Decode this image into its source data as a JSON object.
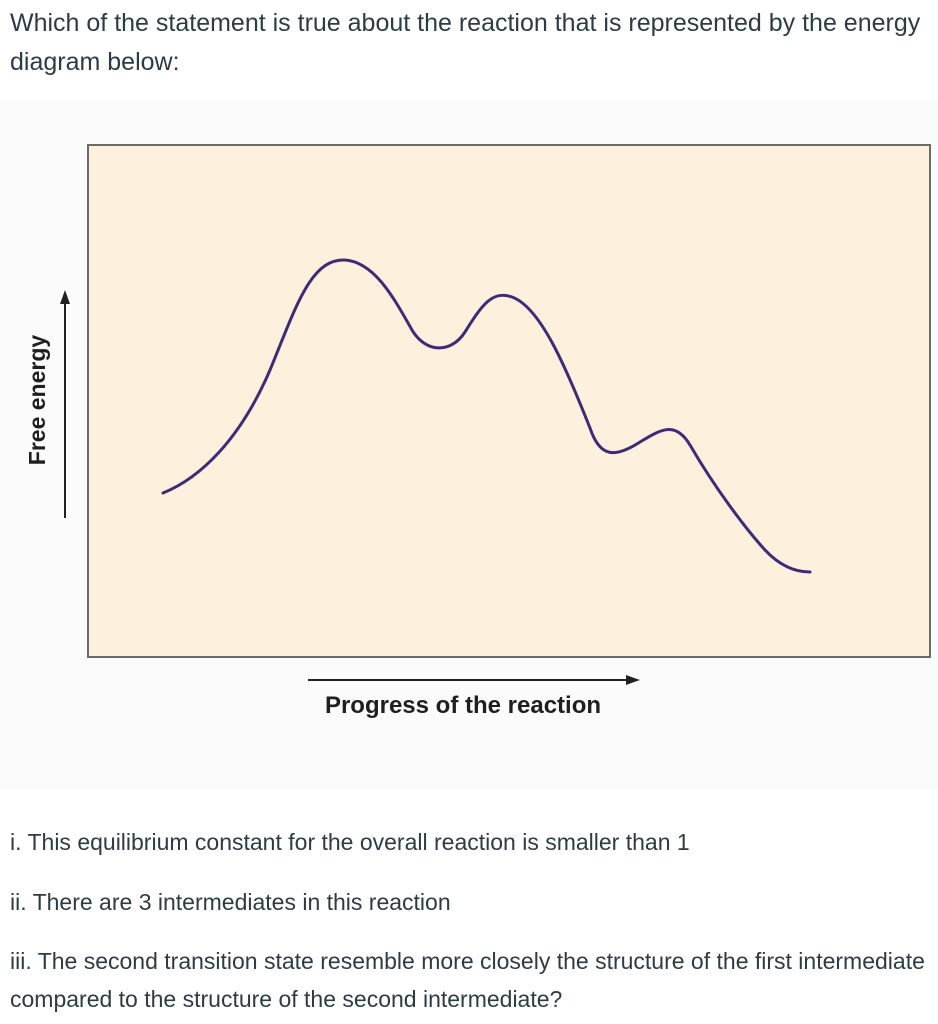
{
  "question": "Which of the statement is true about the reaction that is represented by the energy diagram below:",
  "diagram": {
    "y_axis_label": "Free energy",
    "x_axis_label": "Progress of the reaction",
    "panel_fill": "#fdf0dc",
    "curve_color": "#3f2a78"
  },
  "statements": [
    "i. This equilibrium constant for the overall reaction is smaller than 1",
    "ii. There are 3 intermediates in this reaction",
    "iii. The second transition state resemble more closely the structure of the first intermediate compared to the structure of the second intermediate?"
  ]
}
